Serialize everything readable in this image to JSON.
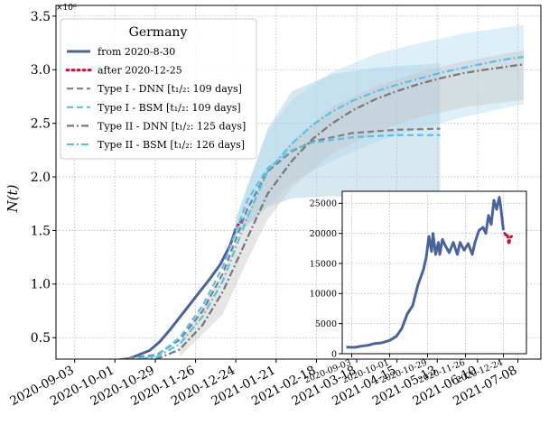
{
  "chart_data": [
    {
      "type": "line",
      "ylabel": "N(t)",
      "exponent_label": "×10⁶",
      "ylim": [
        0.3,
        3.6
      ],
      "yticks": [
        "0.5",
        "1.0",
        "1.5",
        "2.0",
        "2.5",
        "3.0",
        "3.5"
      ],
      "ytick_values": [
        0.5,
        1.0,
        1.5,
        2.0,
        2.5,
        3.0,
        3.5
      ],
      "xlim": [
        "2020-08-21",
        "2021-07-24"
      ],
      "xticks": [
        "2020-09-03",
        "2020-10-01",
        "2020-10-29",
        "2020-11-26",
        "2020-12-24",
        "2021-01-21",
        "2021-02-18",
        "2021-03-18",
        "2021-04-15",
        "2021-05-13",
        "2021-06-10",
        "2021-07-08"
      ],
      "grid": true,
      "legend_placement": "top-left",
      "legend_title": "Germany",
      "series": [
        {
          "name": "from 2020-8-30",
          "style": "solid",
          "color": "#4a6399",
          "x": [
            "2020-08-30",
            "2020-09-13",
            "2020-09-27",
            "2020-10-11",
            "2020-10-25",
            "2020-11-01",
            "2020-11-08",
            "2020-11-15",
            "2020-11-22",
            "2020-11-29",
            "2020-12-06",
            "2020-12-13",
            "2020-12-20",
            "2020-12-24"
          ],
          "y": [
            0.24,
            0.255,
            0.275,
            0.305,
            0.38,
            0.46,
            0.57,
            0.69,
            0.81,
            0.93,
            1.05,
            1.18,
            1.36,
            1.52
          ]
        },
        {
          "name": "after 2020-12-25",
          "style": "dotted",
          "color": "#c0143c",
          "x": [
            "2020-12-25",
            "2020-12-26",
            "2020-12-27",
            "2020-12-28"
          ],
          "y": [
            1.54,
            1.56,
            1.58,
            1.6
          ]
        },
        {
          "name": "Type I - DNN [t₁/₂: 109 days]",
          "style": "dashed",
          "color": "#808080",
          "x": [
            "2020-08-30",
            "2020-09-30",
            "2020-10-30",
            "2020-11-15",
            "2020-12-01",
            "2020-12-15",
            "2021-01-01",
            "2021-01-15",
            "2021-02-01",
            "2021-02-15",
            "2021-03-15",
            "2021-04-15",
            "2021-05-15"
          ],
          "y": [
            0.27,
            0.29,
            0.34,
            0.48,
            0.75,
            1.1,
            1.7,
            2.05,
            2.24,
            2.33,
            2.41,
            2.44,
            2.45
          ]
        },
        {
          "name": "Type I - BSM [t₁/₂: 109 days]",
          "style": "dashed",
          "color": "#5bc0e8",
          "x": [
            "2020-08-30",
            "2020-09-30",
            "2020-10-30",
            "2020-11-15",
            "2020-12-01",
            "2020-12-15",
            "2021-01-01",
            "2021-01-15",
            "2021-02-01",
            "2021-02-15",
            "2021-03-15",
            "2021-04-15",
            "2021-05-15"
          ],
          "y": [
            0.26,
            0.28,
            0.33,
            0.5,
            0.8,
            1.16,
            1.78,
            2.08,
            2.25,
            2.32,
            2.37,
            2.39,
            2.39
          ]
        },
        {
          "name": "Type II - DNN [t₁/₂: 125 days]",
          "style": "dashdot",
          "color": "#777777",
          "x": [
            "2020-08-30",
            "2020-09-30",
            "2020-10-30",
            "2020-11-15",
            "2020-12-01",
            "2020-12-15",
            "2021-01-01",
            "2021-01-15",
            "2021-02-01",
            "2021-02-15",
            "2021-03-01",
            "2021-03-15",
            "2021-04-01",
            "2021-04-15",
            "2021-05-01",
            "2021-05-15",
            "2021-06-01",
            "2021-06-15",
            "2021-07-01",
            "2021-07-12"
          ],
          "y": [
            0.27,
            0.28,
            0.3,
            0.39,
            0.62,
            0.93,
            1.43,
            1.84,
            2.15,
            2.35,
            2.5,
            2.62,
            2.73,
            2.8,
            2.87,
            2.92,
            2.97,
            3.0,
            3.03,
            3.05
          ]
        },
        {
          "name": "Type II - BSM [t₁/₂: 126 days]",
          "style": "dashdot",
          "color": "#5bc0e8",
          "x": [
            "2020-08-30",
            "2020-09-30",
            "2020-10-30",
            "2020-11-15",
            "2020-12-01",
            "2020-12-15",
            "2021-01-01",
            "2021-01-15",
            "2021-02-01",
            "2021-02-15",
            "2021-03-01",
            "2021-03-15",
            "2021-04-01",
            "2021-04-15",
            "2021-05-01",
            "2021-05-15",
            "2021-06-01",
            "2021-06-15",
            "2021-07-01",
            "2021-07-12"
          ],
          "y": [
            0.26,
            0.28,
            0.32,
            0.44,
            0.7,
            1.03,
            1.62,
            2.05,
            2.31,
            2.48,
            2.61,
            2.71,
            2.8,
            2.86,
            2.92,
            2.97,
            3.02,
            3.06,
            3.1,
            3.12
          ]
        }
      ],
      "bands": [
        {
          "color": "#a9cbe0",
          "opacity": 0.45,
          "x": [
            "2020-12-24",
            "2021-01-15",
            "2021-02-01",
            "2021-03-01",
            "2021-04-01",
            "2021-05-15"
          ],
          "lower": [
            1.45,
            1.72,
            1.8,
            1.82,
            1.8,
            1.76
          ],
          "upper": [
            1.6,
            2.45,
            2.8,
            2.96,
            3.02,
            3.06
          ]
        },
        {
          "color": "#aad8ee",
          "opacity": 0.4,
          "x": [
            "2020-12-24",
            "2021-01-15",
            "2021-02-01",
            "2021-03-01",
            "2021-04-01",
            "2021-05-01",
            "2021-06-01",
            "2021-07-12"
          ],
          "lower": [
            1.45,
            1.72,
            1.95,
            2.15,
            2.33,
            2.45,
            2.56,
            2.68
          ],
          "upper": [
            1.62,
            2.42,
            2.72,
            2.98,
            3.15,
            3.25,
            3.34,
            3.42
          ]
        },
        {
          "color": "#c8c8c8",
          "opacity": 0.45,
          "x": [
            "2020-11-15",
            "2020-12-15",
            "2021-01-01",
            "2021-01-15",
            "2021-02-01",
            "2021-03-01",
            "2021-04-01",
            "2021-05-01",
            "2021-06-01",
            "2021-07-12"
          ],
          "lower": [
            0.32,
            0.72,
            1.22,
            1.6,
            1.9,
            2.22,
            2.42,
            2.56,
            2.65,
            2.72
          ],
          "upper": [
            0.46,
            1.1,
            1.65,
            2.05,
            2.33,
            2.66,
            2.85,
            2.98,
            3.08,
            3.18
          ]
        }
      ]
    },
    {
      "type": "line",
      "ylim": [
        0,
        27000
      ],
      "yticks": [
        "0",
        "5000",
        "10000",
        "15000",
        "20000",
        "25000"
      ],
      "ytick_values": [
        0,
        5000,
        10000,
        15000,
        20000,
        25000
      ],
      "xlim": [
        "2020-08-27",
        "2021-01-10"
      ],
      "xticks": [
        "2020-09-03",
        "2020-10-01",
        "2020-10-29",
        "2020-11-26",
        "2020-12-24"
      ],
      "grid": true,
      "series": [
        {
          "style": "solid",
          "color": "#4a6399",
          "x": [
            "2020-08-30",
            "2020-09-05",
            "2020-09-10",
            "2020-09-15",
            "2020-09-20",
            "2020-09-25",
            "2020-10-01",
            "2020-10-06",
            "2020-10-10",
            "2020-10-14",
            "2020-10-18",
            "2020-10-22",
            "2020-10-26",
            "2020-10-28",
            "2020-10-30",
            "2020-11-01",
            "2020-11-02",
            "2020-11-04",
            "2020-11-06",
            "2020-11-07",
            "2020-11-09",
            "2020-11-11",
            "2020-11-14",
            "2020-11-17",
            "2020-11-20",
            "2020-11-22",
            "2020-11-25",
            "2020-11-28",
            "2020-12-01",
            "2020-12-03",
            "2020-12-06",
            "2020-12-09",
            "2020-12-11",
            "2020-12-13",
            "2020-12-15",
            "2020-12-17",
            "2020-12-19",
            "2020-12-21",
            "2020-12-22",
            "2020-12-23",
            "2020-12-24"
          ],
          "y": [
            1100,
            1050,
            1250,
            1400,
            1700,
            1800,
            2200,
            2900,
            4200,
            6600,
            8000,
            11500,
            14000,
            16000,
            19500,
            17000,
            20000,
            16500,
            18500,
            16500,
            19000,
            18000,
            16800,
            18500,
            16500,
            18500,
            17200,
            18300,
            16500,
            18500,
            20500,
            21000,
            20000,
            23000,
            21500,
            25500,
            24000,
            26000,
            24500,
            22500,
            20500
          ]
        },
        {
          "style": "dotted",
          "color": "#c0143c",
          "x": [
            "2020-12-25",
            "2020-12-26",
            "2020-12-27",
            "2020-12-28",
            "2020-12-29",
            "2020-12-30"
          ],
          "y": [
            20000,
            19600,
            19800,
            18200,
            19300,
            19500
          ]
        }
      ]
    }
  ]
}
